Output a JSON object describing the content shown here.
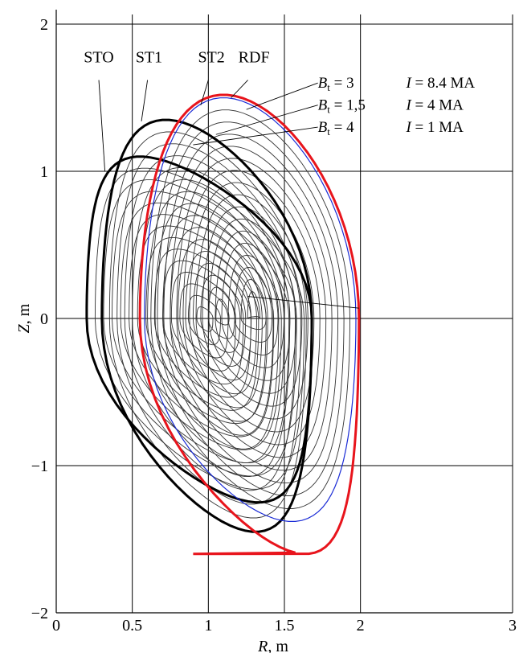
{
  "chart_data": {
    "type": "line",
    "xlabel": "R, m",
    "ylabel": "Z, m",
    "xlim": [
      0,
      3
    ],
    "ylim": [
      -2,
      2
    ],
    "xticks": [
      0,
      0.5,
      1,
      1.5,
      2,
      3
    ],
    "xtick_labels": [
      "0",
      "0.5",
      "1",
      "1.5",
      "2",
      "3"
    ],
    "yticks": [
      -2,
      -1,
      0,
      1,
      2
    ],
    "ytick_labels": [
      "−2",
      "−1",
      "0",
      "1",
      "2"
    ],
    "grid": true,
    "colors": {
      "axes": "#000000",
      "flux": "#333333",
      "boundary": "#000000",
      "rdf_outer": "#e8141c",
      "rdf_inner": "#1a2bd6"
    },
    "configurations": [
      {
        "name": "STO",
        "R_min": 0.2,
        "R_max": 1.68,
        "Z_min": -1.25,
        "Z_max": 1.1,
        "R_top": 0.55,
        "R_bottom": 0.55
      },
      {
        "name": "ST1",
        "R_min": 0.3,
        "R_max": 1.68,
        "Z_min": -1.45,
        "Z_max": 1.35,
        "R_top": 0.72,
        "R_bottom": 0.67
      },
      {
        "name": "ST2",
        "R_min": 0.58,
        "R_max": 1.97,
        "Z_min": -1.38,
        "Z_max": 1.5,
        "R_top": 1.1,
        "R_bottom": 1.0
      },
      {
        "name": "RDF",
        "R_min": 0.55,
        "R_max": 1.99,
        "Z_min": -1.6,
        "Z_max": 1.52,
        "R_top": 1.1,
        "R_bottom": 0.9
      }
    ],
    "magnetic_axes": [
      {
        "R": 0.98,
        "Z": 0.0
      },
      {
        "R": 1.1,
        "Z": 0.05
      },
      {
        "R": 1.3,
        "Z": 0.1
      }
    ],
    "annotations": [
      {
        "b_symbol": "B",
        "b_sub": "t",
        "b_value": " = 3",
        "i_symbol": "I",
        "i_value": " = 8.4 MA"
      },
      {
        "b_symbol": "B",
        "b_sub": "t",
        "b_value": " = 1,5",
        "i_symbol": "I",
        "i_value": " = 4 MA"
      },
      {
        "b_symbol": "B",
        "b_sub": "t",
        "b_value": " = 4",
        "i_symbol": "I",
        "i_value": " = 1 MA"
      }
    ]
  }
}
